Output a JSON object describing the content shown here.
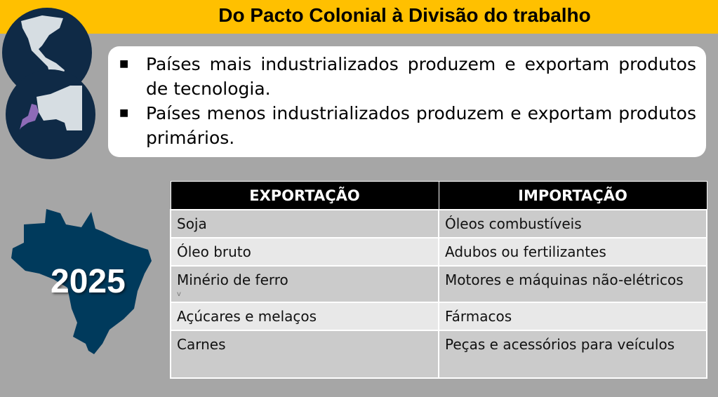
{
  "title": "Do Pacto Colonial à Divisão do trabalho",
  "bullets": [
    "Países mais industrializados produzem e exportam produtos de tecnologia.",
    "Países menos  industrializados produzem e exportam produtos primários."
  ],
  "year": "2025",
  "table": {
    "headers": [
      "EXPORTAÇÃO",
      "IMPORTAÇÃO"
    ],
    "rows": [
      [
        "Soja",
        "Óleos combustíveis"
      ],
      [
        "Óleo bruto",
        "Adubos ou fertilizantes"
      ],
      [
        "Minério de ferro",
        "Motores e máquinas não-elétricos"
      ],
      [
        "Açúcares e melaços",
        "Fármacos"
      ],
      [
        "Carnes",
        "Peças  e acessórios para veículos"
      ]
    ],
    "stray_mark": "v"
  },
  "colors": {
    "title_bar": "#ffc000",
    "map_navy": "#0f2a46",
    "brazil": "#003a5c",
    "europe_highlight": "#8e6bb8"
  }
}
